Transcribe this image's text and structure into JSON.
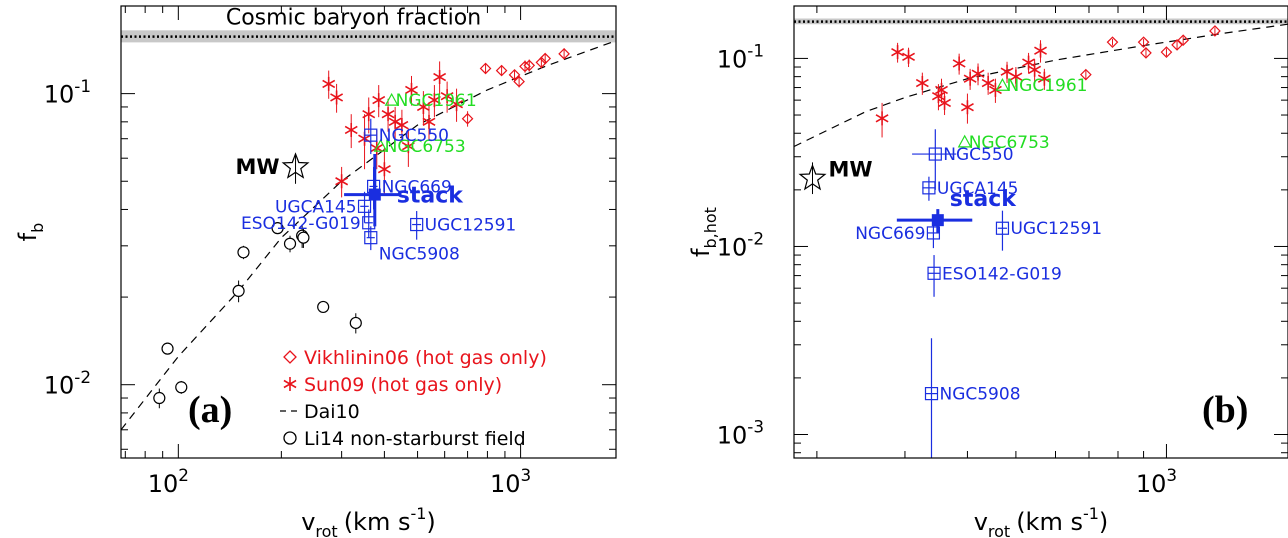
{
  "colors": {
    "black": "#000000",
    "red": "#e8141c",
    "blue": "#1a2ee0",
    "green": "#22dd22",
    "band": "#c8c8c8"
  },
  "chart_data": [
    {
      "type": "scatter",
      "panel_label": "(a)",
      "xlabel": "v_rot (km s^-1)",
      "xlabel_main": "v",
      "xlabel_sub": "rot",
      "xlabel_unit": "(km s",
      "xlabel_exp": "-1",
      "xlabel_close": ")",
      "ylabel": "f_b",
      "ylabel_main": "f",
      "ylabel_sub": "b",
      "xscale": "log",
      "yscale": "log",
      "xlim": [
        68,
        1900
      ],
      "ylim": [
        0.0056,
        0.2
      ],
      "x_ticks": [
        {
          "v": 100,
          "label": "10",
          "exp": "2"
        },
        {
          "v": 1000,
          "label": "10",
          "exp": "3"
        }
      ],
      "y_ticks": [
        {
          "v": 0.01,
          "label": "10",
          "exp": "-2"
        },
        {
          "v": 0.1,
          "label": "10",
          "exp": "-1"
        }
      ],
      "band": {
        "text": "Cosmic baryon fraction",
        "y": 0.157,
        "ylow": 0.15,
        "yhigh": 0.165
      },
      "curve": {
        "name": "Dai10",
        "x": [
          68,
          100,
          150,
          200,
          300,
          500,
          800,
          1200,
          1900
        ],
        "y": [
          0.007,
          0.0125,
          0.021,
          0.032,
          0.05,
          0.078,
          0.103,
          0.125,
          0.152
        ]
      },
      "legend": [
        {
          "marker": "diamond",
          "color": "red",
          "text": "Vikhlinin06 (hot gas only)"
        },
        {
          "marker": "asterisk",
          "color": "red",
          "text": "Sun09 (hot gas only)"
        },
        {
          "marker": "dash",
          "color": "black",
          "text": "Dai10"
        },
        {
          "marker": "circle",
          "color": "black",
          "text": "Li14 non-starburst field"
        }
      ],
      "vikhlinin": [
        {
          "x": 700,
          "y": 0.082,
          "e": 0.005
        },
        {
          "x": 790,
          "y": 0.122,
          "e": 0.005
        },
        {
          "x": 880,
          "y": 0.12,
          "e": 0.005
        },
        {
          "x": 960,
          "y": 0.116,
          "e": 0.005
        },
        {
          "x": 990,
          "y": 0.11,
          "e": 0.005
        },
        {
          "x": 1030,
          "y": 0.124,
          "e": 0.006
        },
        {
          "x": 1060,
          "y": 0.125,
          "e": 0.006
        },
        {
          "x": 1150,
          "y": 0.128,
          "e": 0.006
        },
        {
          "x": 1340,
          "y": 0.137,
          "e": 0.006
        },
        {
          "x": 1180,
          "y": 0.132,
          "e": 0.005
        }
      ],
      "sun09": [
        {
          "x": 275,
          "y": 0.108,
          "e": 0.012
        },
        {
          "x": 290,
          "y": 0.097,
          "e": 0.011
        },
        {
          "x": 300,
          "y": 0.05,
          "e": 0.006
        },
        {
          "x": 320,
          "y": 0.075,
          "e": 0.01
        },
        {
          "x": 350,
          "y": 0.07,
          "e": 0.015
        },
        {
          "x": 360,
          "y": 0.085,
          "e": 0.012
        },
        {
          "x": 380,
          "y": 0.065,
          "e": 0.01
        },
        {
          "x": 385,
          "y": 0.095,
          "e": 0.012
        },
        {
          "x": 400,
          "y": 0.055,
          "e": 0.01
        },
        {
          "x": 410,
          "y": 0.085,
          "e": 0.011
        },
        {
          "x": 430,
          "y": 0.08,
          "e": 0.01
        },
        {
          "x": 450,
          "y": 0.078,
          "e": 0.01
        },
        {
          "x": 470,
          "y": 0.066,
          "e": 0.01
        },
        {
          "x": 480,
          "y": 0.103,
          "e": 0.012
        },
        {
          "x": 520,
          "y": 0.09,
          "e": 0.012
        },
        {
          "x": 540,
          "y": 0.08,
          "e": 0.011
        },
        {
          "x": 560,
          "y": 0.095,
          "e": 0.012
        },
        {
          "x": 580,
          "y": 0.114,
          "e": 0.015
        },
        {
          "x": 610,
          "y": 0.098,
          "e": 0.012
        },
        {
          "x": 650,
          "y": 0.092,
          "e": 0.012
        }
      ],
      "li14": [
        {
          "x": 88,
          "y": 0.009,
          "e": 0.0007
        },
        {
          "x": 93,
          "y": 0.0133,
          "e": 0.0005
        },
        {
          "x": 102,
          "y": 0.0098,
          "e": 0.0005
        },
        {
          "x": 150,
          "y": 0.021,
          "e": 0.0018
        },
        {
          "x": 155,
          "y": 0.0285,
          "e": 0.0015
        },
        {
          "x": 195,
          "y": 0.0345,
          "e": 0.001
        },
        {
          "x": 212,
          "y": 0.0305,
          "e": 0.002
        },
        {
          "x": 230,
          "y": 0.0325,
          "e": 0.003
        },
        {
          "x": 232,
          "y": 0.032,
          "e": 0.0025
        },
        {
          "x": 265,
          "y": 0.0185,
          "e": 0.0006
        },
        {
          "x": 330,
          "y": 0.0163,
          "e": 0.0013
        }
      ],
      "galaxies": [
        {
          "name": "NGC550",
          "x": 365,
          "y": 0.072,
          "ex": 15,
          "ey": 0.01,
          "label_pos": "right"
        },
        {
          "name": "NGC669",
          "x": 372,
          "y": 0.048,
          "ex": 10,
          "ey": 0.008,
          "label_pos": "right"
        },
        {
          "name": "UGCA145",
          "x": 350,
          "y": 0.041,
          "ex": 10,
          "ey": 0.005,
          "label_pos": "left"
        },
        {
          "name": "ESO142-G019",
          "x": 360,
          "y": 0.036,
          "ex": 10,
          "ey": 0.004,
          "label_pos": "left"
        },
        {
          "name": "UGC12591",
          "x": 497,
          "y": 0.0355,
          "ex": 15,
          "ey": 0.004,
          "label_pos": "right"
        },
        {
          "name": "NGC5908",
          "x": 365,
          "y": 0.032,
          "ex": 10,
          "ey": 0.003,
          "label_pos": "rightlow"
        }
      ],
      "stack": {
        "name": "stack",
        "x": 375,
        "y": 0.045,
        "ex": 70,
        "eylow": 0.035,
        "eyhigh": 0.062
      },
      "green_points": [
        {
          "name": "NGC1961",
          "x": 420,
          "y": 0.095
        },
        {
          "name": "NGC6753",
          "x": 390,
          "y": 0.066
        }
      ],
      "mw": {
        "name": "MW",
        "x": 220,
        "y": 0.056,
        "eylow": 0.049,
        "eyhigh": 0.062
      }
    },
    {
      "type": "scatter",
      "panel_label": "(b)",
      "xlabel": "v_rot (km s^-1)",
      "xlabel_main": "v",
      "xlabel_sub": "rot",
      "xlabel_unit": "(km s",
      "xlabel_exp": "-1",
      "xlabel_close": ")",
      "ylabel": "f_b,hot",
      "ylabel_main": "f",
      "ylabel_sub": "b,hot",
      "xscale": "log",
      "yscale": "log",
      "xlim": [
        180,
        1750
      ],
      "ylim": [
        0.00075,
        0.19
      ],
      "x_ticks": [
        {
          "v": 1000,
          "label": "10",
          "exp": "3"
        }
      ],
      "y_ticks": [
        {
          "v": 0.001,
          "label": "10",
          "exp": "-3"
        },
        {
          "v": 0.01,
          "label": "10",
          "exp": "-2"
        },
        {
          "v": 0.1,
          "label": "10",
          "exp": "-1"
        }
      ],
      "band": {
        "text": "",
        "y": 0.157,
        "ylow": 0.152,
        "yhigh": 0.163
      },
      "curve": {
        "name": "Dai10",
        "x": [
          180,
          250,
          300,
          400,
          600,
          900,
          1300,
          1750
        ],
        "y": [
          0.034,
          0.052,
          0.062,
          0.078,
          0.098,
          0.117,
          0.136,
          0.152
        ]
      },
      "vikhlinin": [
        {
          "x": 690,
          "y": 0.082,
          "e": 0.005
        },
        {
          "x": 780,
          "y": 0.122,
          "e": 0.005
        },
        {
          "x": 900,
          "y": 0.122,
          "e": 0.005
        },
        {
          "x": 910,
          "y": 0.107,
          "e": 0.005
        },
        {
          "x": 1000,
          "y": 0.108,
          "e": 0.005
        },
        {
          "x": 1050,
          "y": 0.118,
          "e": 0.006
        },
        {
          "x": 1080,
          "y": 0.125,
          "e": 0.006
        },
        {
          "x": 1250,
          "y": 0.14,
          "e": 0.006
        }
      ],
      "sun09": [
        {
          "x": 270,
          "y": 0.048,
          "e": 0.01
        },
        {
          "x": 290,
          "y": 0.108,
          "e": 0.013
        },
        {
          "x": 305,
          "y": 0.102,
          "e": 0.012
        },
        {
          "x": 325,
          "y": 0.074,
          "e": 0.01
        },
        {
          "x": 350,
          "y": 0.063,
          "e": 0.01
        },
        {
          "x": 355,
          "y": 0.068,
          "e": 0.01
        },
        {
          "x": 360,
          "y": 0.058,
          "e": 0.008
        },
        {
          "x": 385,
          "y": 0.094,
          "e": 0.012
        },
        {
          "x": 400,
          "y": 0.055,
          "e": 0.01
        },
        {
          "x": 405,
          "y": 0.078,
          "e": 0.01
        },
        {
          "x": 420,
          "y": 0.083,
          "e": 0.011
        },
        {
          "x": 440,
          "y": 0.074,
          "e": 0.01
        },
        {
          "x": 455,
          "y": 0.068,
          "e": 0.01
        },
        {
          "x": 480,
          "y": 0.085,
          "e": 0.011
        },
        {
          "x": 500,
          "y": 0.08,
          "e": 0.01
        },
        {
          "x": 530,
          "y": 0.095,
          "e": 0.012
        },
        {
          "x": 545,
          "y": 0.087,
          "e": 0.012
        },
        {
          "x": 560,
          "y": 0.11,
          "e": 0.015
        },
        {
          "x": 570,
          "y": 0.078,
          "e": 0.01
        }
      ],
      "galaxies": [
        {
          "name": "NGC550",
          "x": 345,
          "y": 0.031,
          "ex": 35,
          "ey": 0.011,
          "label_pos": "right"
        },
        {
          "name": "UGCA145",
          "x": 335,
          "y": 0.0205,
          "ex": 10,
          "ey": 0.003,
          "label_pos": "right"
        },
        {
          "name": "NGC669",
          "x": 342,
          "y": 0.0118,
          "ex": 10,
          "ey": 0.002,
          "label_pos": "left"
        },
        {
          "name": "UGC12591",
          "x": 470,
          "y": 0.0125,
          "ex": 10,
          "ey": 0.003,
          "label_pos": "right"
        },
        {
          "name": "ESO142-G019",
          "x": 343,
          "y": 0.0072,
          "ex": 10,
          "ey": 0.0018,
          "label_pos": "right"
        },
        {
          "name": "NGC5908",
          "x": 339,
          "y": 0.00165,
          "ex": 10,
          "ey": 0.0016,
          "label_pos": "right"
        }
      ],
      "stack": {
        "name": "stack",
        "x": 349,
        "y": 0.0138,
        "ex": 60,
        "eylow": 0.0118,
        "eyhigh": 0.0158
      },
      "green_points": [
        {
          "name": "NGC1961",
          "x": 470,
          "y": 0.072
        },
        {
          "name": "NGC6753",
          "x": 395,
          "y": 0.036
        }
      ],
      "mw": {
        "name": "MW",
        "x": 196,
        "y": 0.023,
        "eylow": 0.019,
        "eyhigh": 0.028
      }
    }
  ]
}
